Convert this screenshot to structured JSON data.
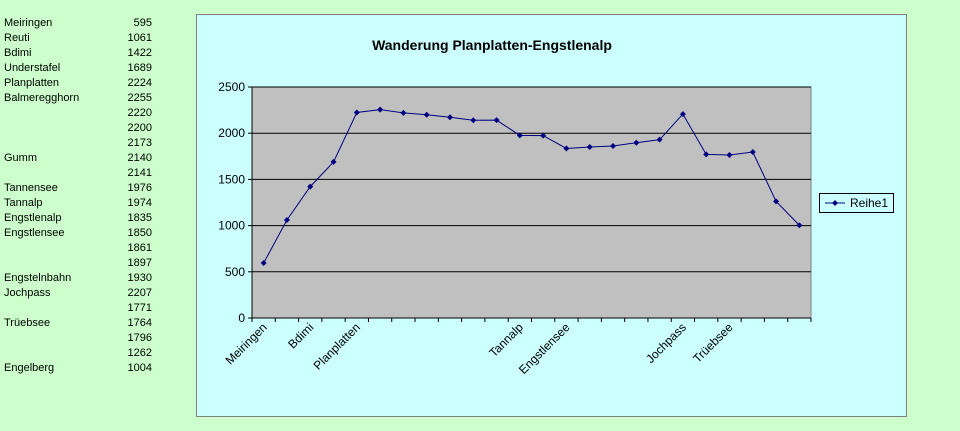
{
  "table": {
    "rows": [
      {
        "name": "Meiringen",
        "value": "595"
      },
      {
        "name": "Reuti",
        "value": "1061"
      },
      {
        "name": "Bdimi",
        "value": "1422"
      },
      {
        "name": "Understafel",
        "value": "1689"
      },
      {
        "name": "Planplatten",
        "value": "2224"
      },
      {
        "name": "Balmeregghorn",
        "value": "2255"
      },
      {
        "name": "",
        "value": "2220"
      },
      {
        "name": "",
        "value": "2200"
      },
      {
        "name": "",
        "value": "2173"
      },
      {
        "name": "Gumm",
        "value": "2140"
      },
      {
        "name": "",
        "value": "2141"
      },
      {
        "name": "Tannensee",
        "value": "1976"
      },
      {
        "name": "Tannalp",
        "value": "1974"
      },
      {
        "name": "Engstlenalp",
        "value": "1835"
      },
      {
        "name": "Engstlensee",
        "value": "1850"
      },
      {
        "name": "",
        "value": "1861"
      },
      {
        "name": "",
        "value": "1897"
      },
      {
        "name": "Engstelnbahn",
        "value": "1930"
      },
      {
        "name": "Jochpass",
        "value": "2207"
      },
      {
        "name": "",
        "value": "1771"
      },
      {
        "name": "Trüebsee",
        "value": "1764"
      },
      {
        "name": "",
        "value": "1796"
      },
      {
        "name": "",
        "value": "1262"
      },
      {
        "name": "Engelberg",
        "value": "1004"
      }
    ]
  },
  "chart_data": {
    "type": "line",
    "title": "Wanderung Planplatten-Engstlenalp",
    "xlabel": "",
    "ylabel": "",
    "ylim": [
      0,
      2500
    ],
    "yticks": [
      0,
      500,
      1000,
      1500,
      2000,
      2500
    ],
    "categories": [
      "Meiringen",
      "",
      "Bdimi",
      "",
      "Planplatten",
      "",
      "",
      "",
      "",
      "",
      "",
      "Tannalp",
      "",
      "Engstlensee",
      "",
      "",
      "",
      "",
      "Jochpass",
      "",
      "Trüebsee",
      "",
      "",
      ""
    ],
    "series": [
      {
        "name": "Reihe1",
        "color": "#000080",
        "values": [
          595,
          1061,
          1422,
          1689,
          2224,
          2255,
          2220,
          2200,
          2173,
          2140,
          2141,
          1976,
          1974,
          1835,
          1850,
          1861,
          1897,
          1930,
          2207,
          1771,
          1764,
          1796,
          1262,
          1004
        ]
      }
    ],
    "grid": true,
    "legend": "right",
    "plot_background": "#c0c0c0",
    "chart_background": "#ccffff",
    "page_background": "#ccffcc"
  }
}
